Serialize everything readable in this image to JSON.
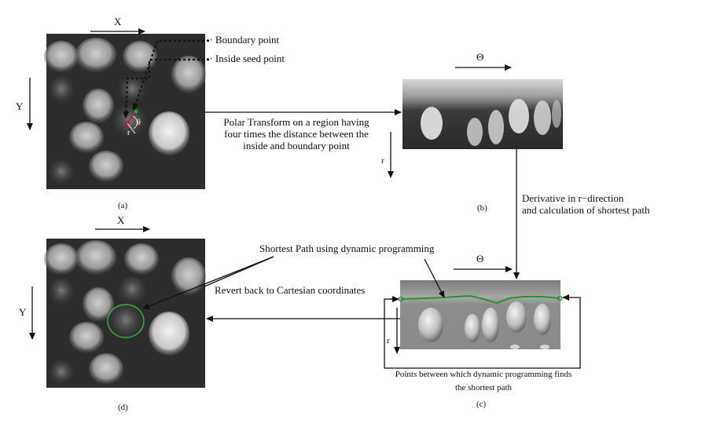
{
  "panels": {
    "a": {
      "label": "(a)",
      "x_axis": "X",
      "y_axis": "Y"
    },
    "b": {
      "label": "(b)",
      "theta_axis": "Θ",
      "r_axis": "r"
    },
    "c": {
      "label": "(c)",
      "theta_axis": "Θ",
      "r_axis": "r"
    },
    "d": {
      "label": "(d)",
      "x_axis": "X",
      "y_axis": "Y"
    }
  },
  "annotations": {
    "boundary_point": "Boundary point",
    "inside_seed_point": "Inside seed point",
    "theta_symbol": "θ",
    "r_symbol": "r",
    "polar_transform": [
      "Polar Transform on a region having",
      "four times the distance between the",
      "inside and boundary point"
    ],
    "derivative": [
      "Derivative in r−direction",
      "and calculation of shortest path"
    ],
    "shortest_path": "Shortest Path using dynamic programming",
    "revert": "Revert back to Cartesian coordinates",
    "points_between": [
      "Points between which dynamic programming finds",
      "the shortest path"
    ]
  },
  "colors": {
    "path": "#1f9a2a",
    "seed": "#c8102e",
    "boundary": "#25a82a"
  }
}
